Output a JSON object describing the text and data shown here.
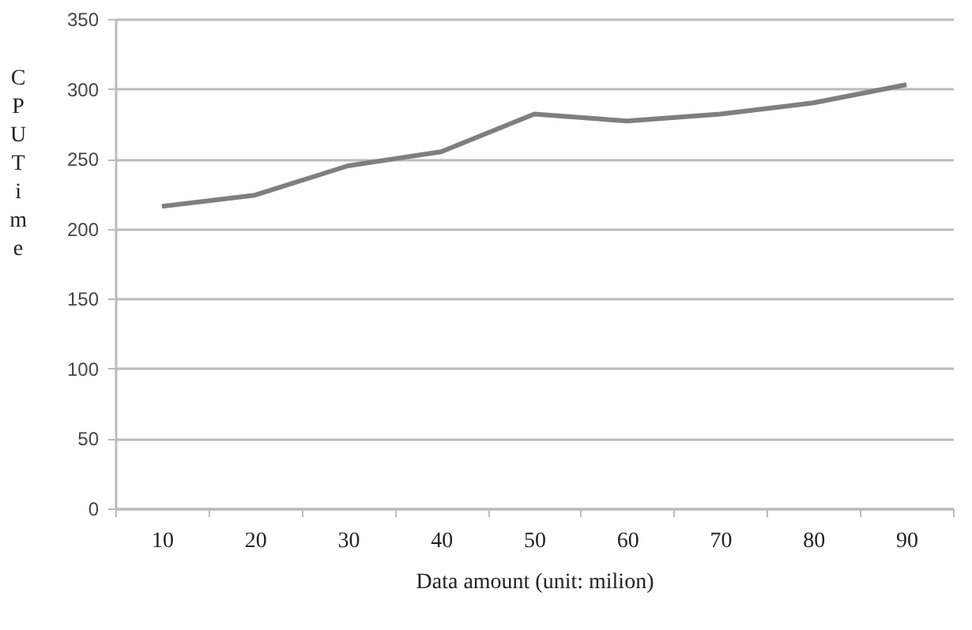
{
  "chart_data": {
    "type": "line",
    "xlabel": "Data amount (unit: milion)",
    "ylabel": "CPU Time",
    "categories": [
      "10",
      "20",
      "30",
      "40",
      "50",
      "60",
      "70",
      "80",
      "90"
    ],
    "series": [
      {
        "color": "#7f7f7f",
        "values": [
          216,
          224,
          245,
          255,
          282,
          277,
          282,
          290,
          303
        ]
      }
    ],
    "ylim": [
      0,
      350
    ],
    "yticks": [
      0,
      50,
      100,
      150,
      200,
      250,
      300,
      350
    ],
    "grid": "y",
    "legend": false,
    "marker": "none",
    "line_style": "solid"
  }
}
